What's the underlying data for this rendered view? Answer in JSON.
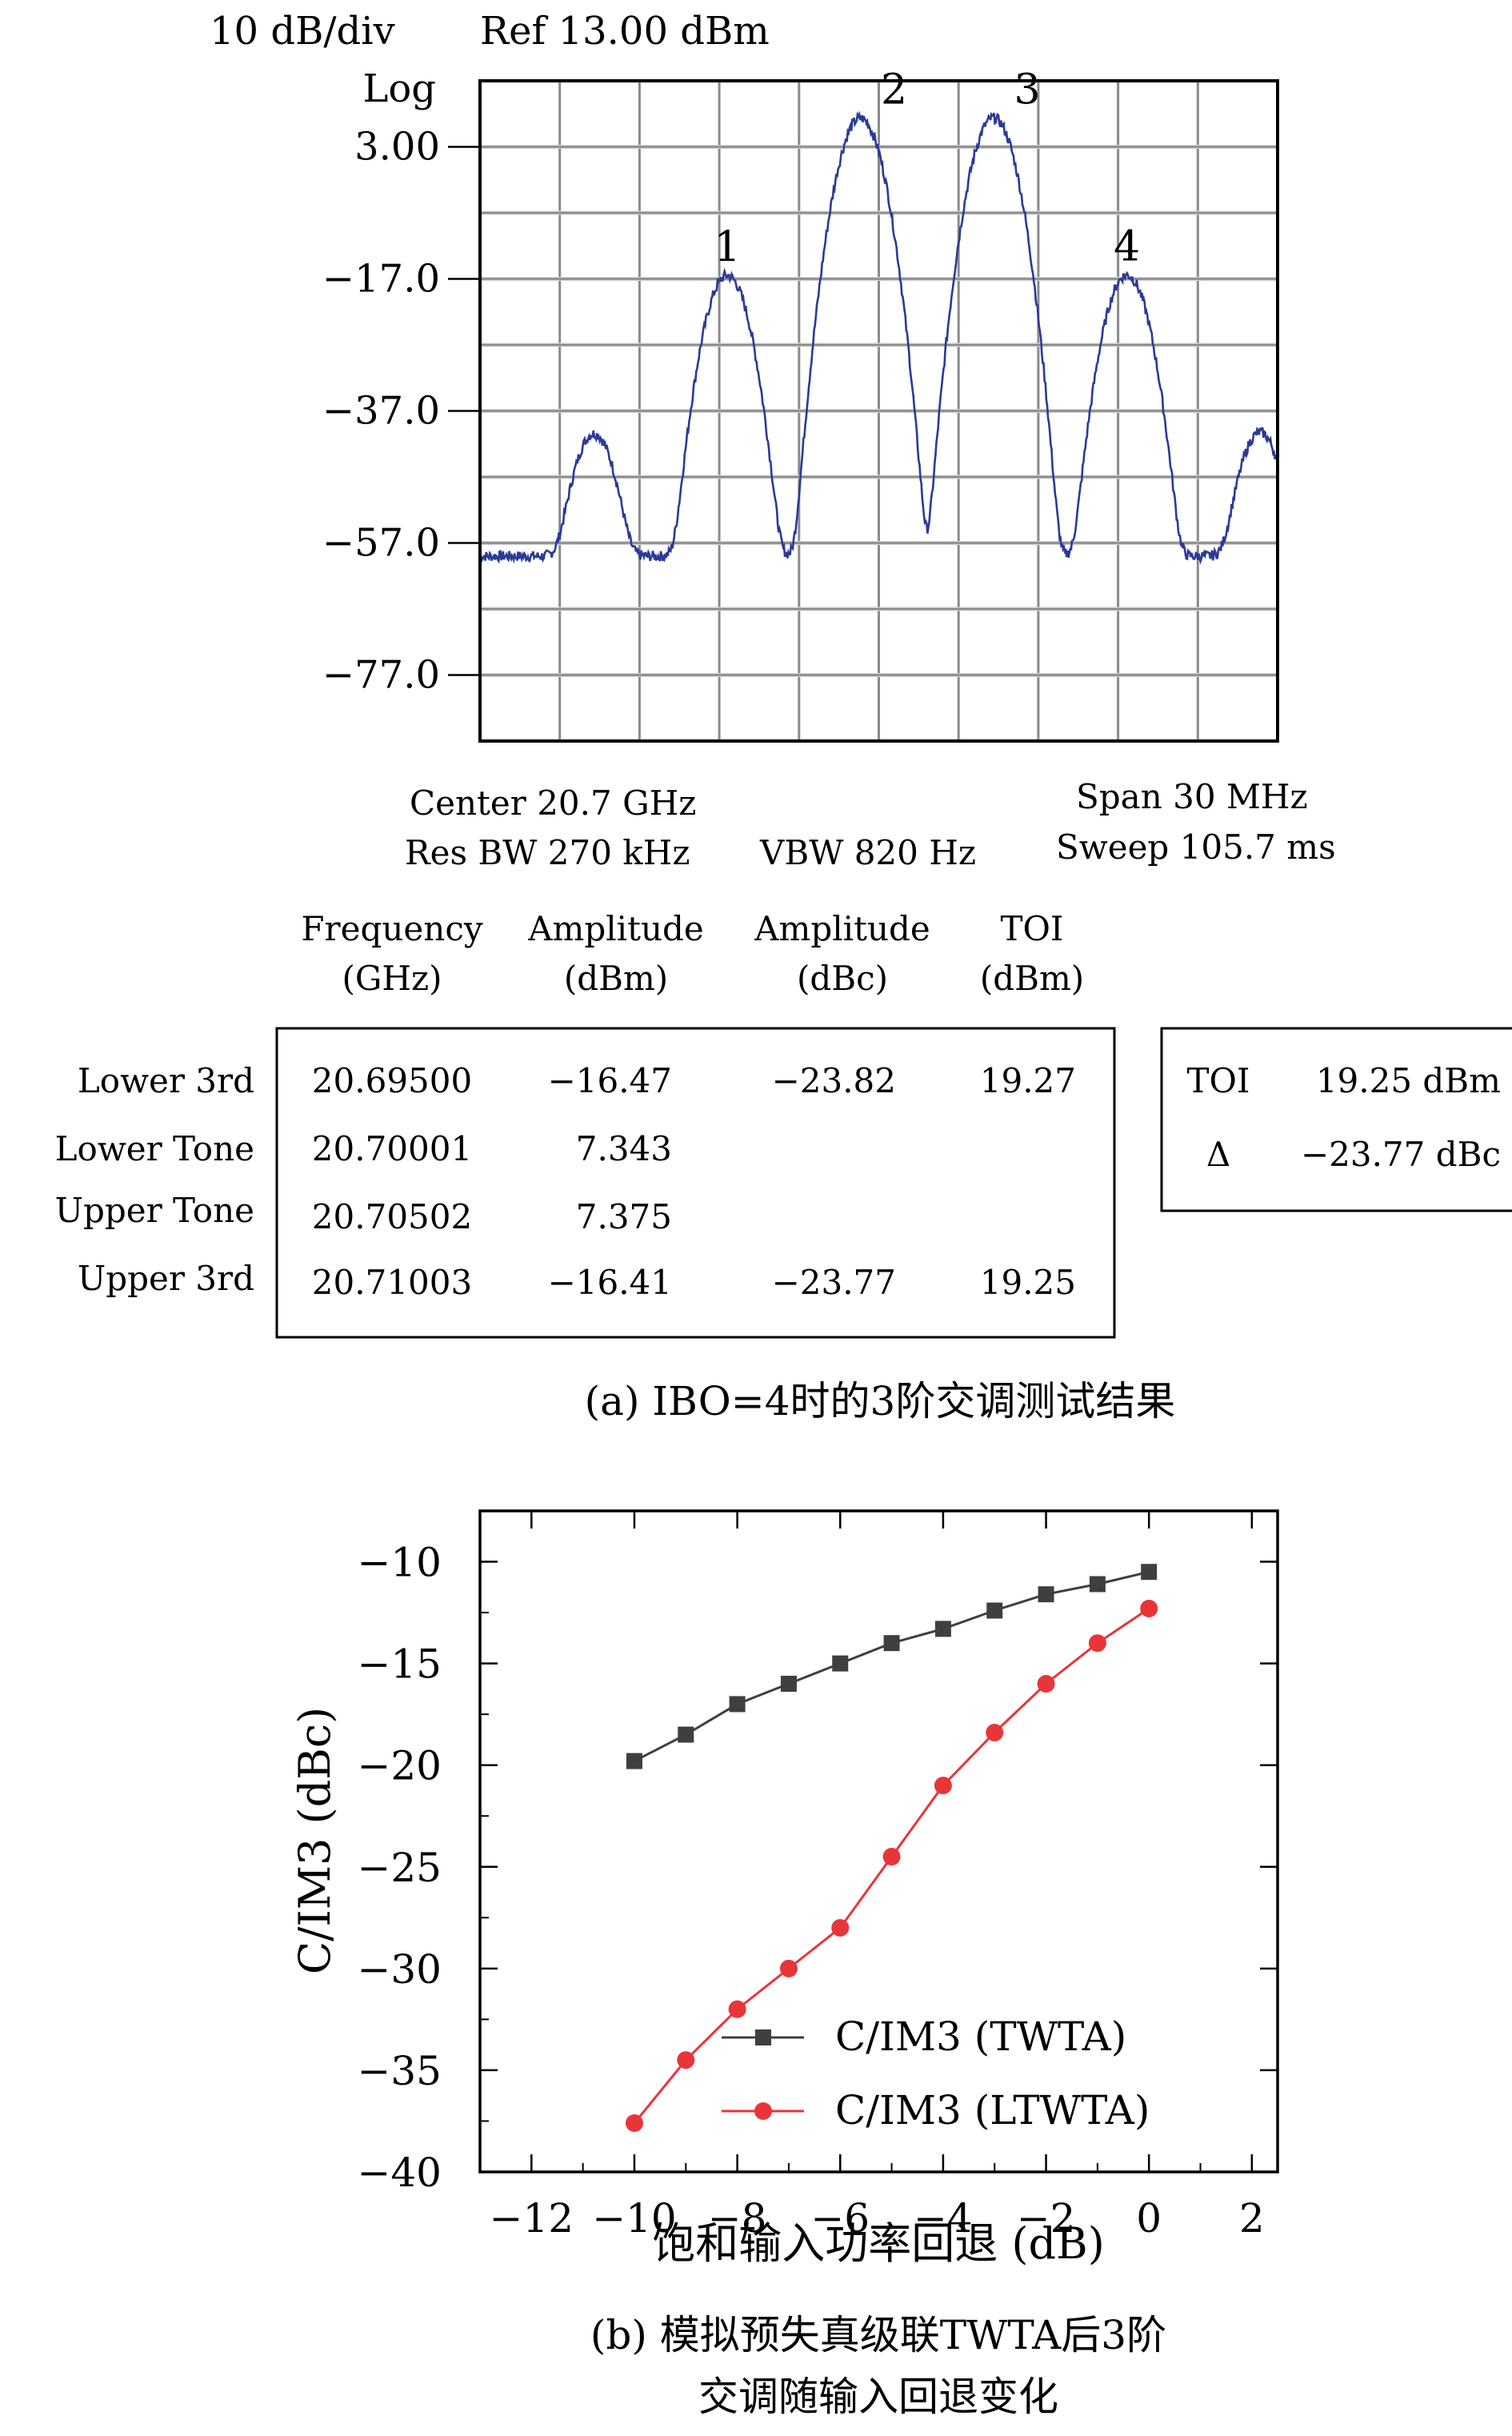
{
  "chart_data": [
    {
      "type": "line",
      "subtype": "spectrum-analyzer",
      "header": {
        "scale": "10 dB/div",
        "ref": "Ref 13.00 dBm",
        "log": "Log"
      },
      "y_ticks": [
        "3.00",
        "−17.0",
        "−37.0",
        "−57.0",
        "−77.0"
      ],
      "ylim": [
        -87,
        13
      ],
      "xlim": [
        20.6857,
        20.7157
      ],
      "x_unit": "GHz",
      "noise_floor_dbm": -59,
      "peaks": [
        {
          "label": "",
          "freq_ghz": 20.68999,
          "amp_dbm": -40.5
        },
        {
          "label": "1",
          "freq_ghz": 20.695,
          "amp_dbm": -16.47
        },
        {
          "label": "2",
          "freq_ghz": 20.70001,
          "amp_dbm": 7.343
        },
        {
          "label": "3",
          "freq_ghz": 20.70502,
          "amp_dbm": 7.375
        },
        {
          "label": "4",
          "freq_ghz": 20.71003,
          "amp_dbm": -16.41
        },
        {
          "label": "",
          "freq_ghz": 20.71504,
          "amp_dbm": -40.3
        }
      ],
      "settings": {
        "center": "Center 20.7 GHz",
        "span": "Span 30 MHz",
        "res_bw": "Res BW 270 kHz",
        "vbw": "VBW 820 Hz",
        "sweep": "Sweep 105.7 ms"
      },
      "table": {
        "columns": [
          {
            "line1": "Frequency",
            "line2": "(GHz)"
          },
          {
            "line1": "Amplitude",
            "line2": "(dBm)"
          },
          {
            "line1": "Amplitude",
            "line2": "(dBc)"
          },
          {
            "line1": "TOI",
            "line2": "(dBm)"
          }
        ],
        "rows": [
          {
            "label": "Lower 3rd",
            "freq": "20.69500",
            "amp_dbm": "−16.47",
            "amp_dbc": "−23.82",
            "toi": "19.27"
          },
          {
            "label": "Lower Tone",
            "freq": "20.70001",
            "amp_dbm": "7.343",
            "amp_dbc": "",
            "toi": ""
          },
          {
            "label": "Upper Tone",
            "freq": "20.70502",
            "amp_dbm": "7.375",
            "amp_dbc": "",
            "toi": ""
          },
          {
            "label": "Upper 3rd",
            "freq": "20.71003",
            "amp_dbm": "−16.41",
            "amp_dbc": "−23.77",
            "toi": "19.25"
          }
        ]
      },
      "summary": {
        "toi_label": "TOI",
        "toi_value": "19.25 dBm",
        "delta_label": "Δ",
        "delta_value": "−23.77 dBc"
      },
      "caption": "(a) IBO=4时的3阶交调测试结果",
      "colors": {
        "trace": "#2b3a96",
        "grid": "#8a8a8a",
        "grid_light": "#d2d2d2"
      }
    },
    {
      "type": "line",
      "xlabel": "饱和输入功率回退 (dB)",
      "ylabel": "C/IM3 (dBc)",
      "xlim": [
        -13,
        2.5
      ],
      "ylim": [
        -40,
        -7.5
      ],
      "x_ticks": [
        -12,
        -10,
        -8,
        -6,
        -4,
        -2,
        0,
        2
      ],
      "y_ticks": [
        -10,
        -15,
        -20,
        -25,
        -30,
        -35,
        -40
      ],
      "x_tick_labels": [
        "−12",
        "−10",
        "−8",
        "−6",
        "−4",
        "−2",
        "0",
        "2"
      ],
      "y_tick_labels": [
        "−10",
        "−15",
        "−20",
        "−25",
        "−30",
        "−35",
        "−40"
      ],
      "legend_position": "bottom-right",
      "series": [
        {
          "name": "C/IM3 (TWTA)",
          "marker": "square",
          "color": "#3f3f3f",
          "x": [
            -10,
            -9,
            -8,
            -7,
            -6,
            -5,
            -4,
            -3,
            -2,
            -1,
            0
          ],
          "y": [
            -19.8,
            -18.5,
            -17.0,
            -16.0,
            -15.0,
            -14.0,
            -13.3,
            -12.4,
            -11.6,
            -11.1,
            -10.5
          ]
        },
        {
          "name": "C/IM3 (LTWTA)",
          "marker": "circle",
          "color": "#e8353a",
          "x": [
            -10,
            -9,
            -8,
            -7,
            -6,
            -5,
            -4,
            -3,
            -2,
            -1,
            0
          ],
          "y": [
            -37.6,
            -34.5,
            -32.0,
            -30.0,
            -28.0,
            -24.5,
            -21.0,
            -18.4,
            -16.0,
            -14.0,
            -12.3
          ]
        }
      ],
      "caption_line1": "(b) 模拟预失真级联TWTA后3阶",
      "caption_line2": "交调随输入回退变化"
    }
  ]
}
